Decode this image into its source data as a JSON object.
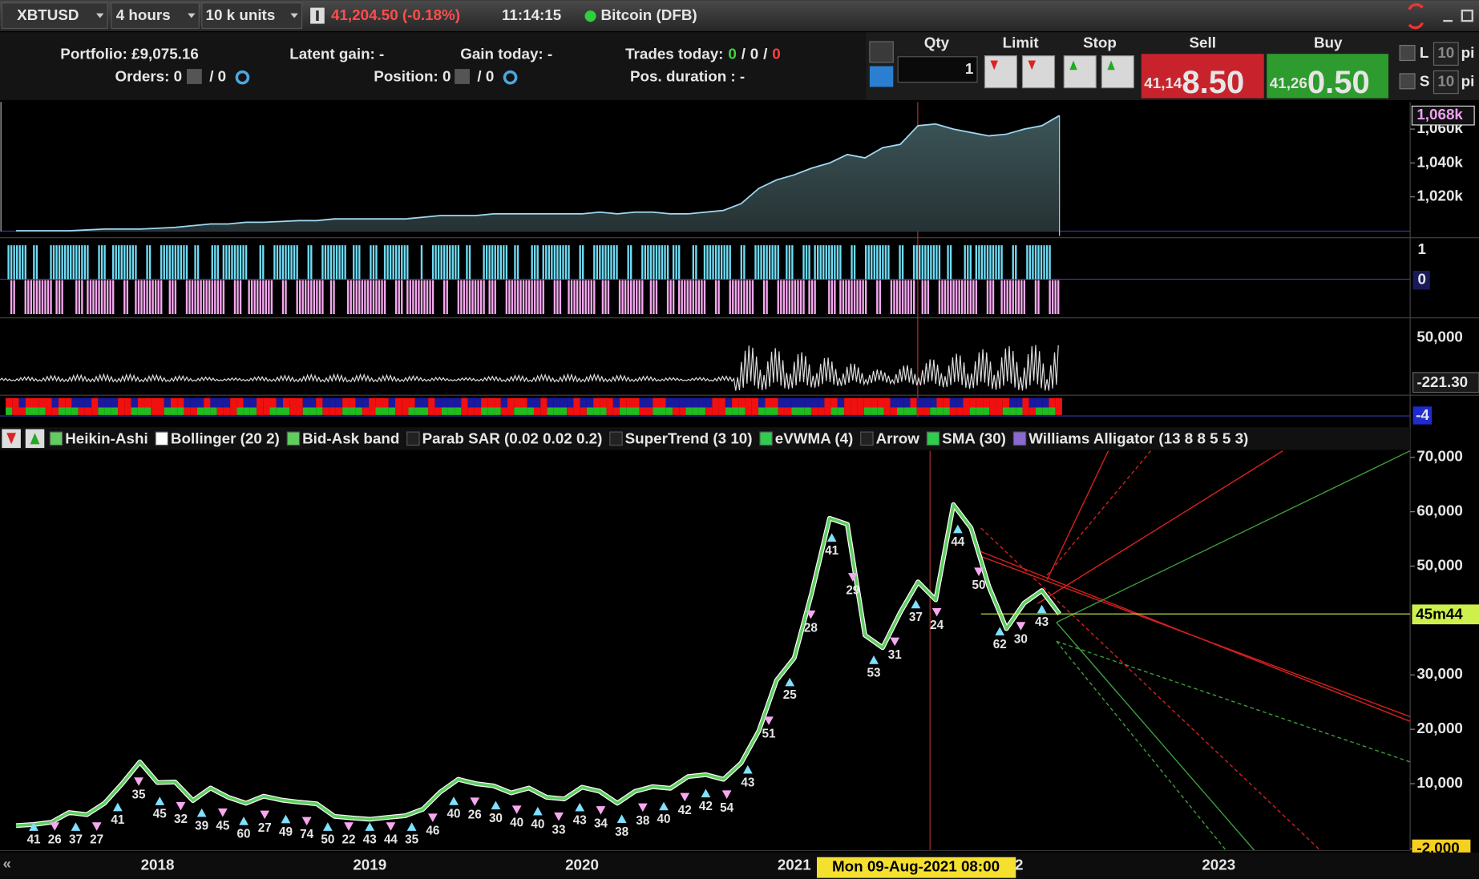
{
  "toolbar": {
    "symbol": "XBTUSD",
    "timeframe": "4 hours",
    "size": "10 k units",
    "price_change": "41,204.50 (-0.18%)",
    "time": "11:14:15",
    "instrument": "Bitcoin (DFB)"
  },
  "account": {
    "portfolio": "Portfolio: £9,075.16",
    "orders": "Orders: 0",
    "orders_total": "/ 0",
    "latent_gain": "Latent gain: -",
    "position": "Position: 0",
    "position_total": "/ 0",
    "gain_today": "Gain today: -",
    "trades_today_label": "Trades today:",
    "trades_today": [
      "0",
      "0",
      "0"
    ],
    "pos_duration": "Pos. duration : -"
  },
  "order_panel": {
    "qty_label": "Qty",
    "qty": "1",
    "limit_label": "Limit",
    "stop_label": "Stop",
    "sell_label": "Sell",
    "sell_price_prefix": "41,14",
    "sell_price_big": "8.50",
    "buy_label": "Buy",
    "buy_price_prefix": "41,26",
    "buy_price_big": "0.50",
    "long_label": "L",
    "long_value": "10",
    "short_label": "S",
    "short_value": "10",
    "unit": "pi"
  },
  "panels": {
    "signal_ticks": [
      "1",
      "0"
    ],
    "oscillator_ticks": [
      "50,000",
      "-221.30"
    ],
    "strip_label": "-4"
  },
  "indicators": [
    "Heikin-Ashi",
    "Bollinger (20 2)",
    "Bid-Ask band",
    "Parab SAR (0.02 0.02 0.2)",
    "SuperTrend (3 10)",
    "eVWMA (4)",
    "Arrow",
    "SMA (30)",
    "Williams Alligator (13 8 8 5 5 3)"
  ],
  "cursor_time": "Mon 09-Aug-2021 08:00",
  "countdown": "45m44",
  "chart_data": [
    {
      "type": "area",
      "values": [
        1000,
        1000,
        1000,
        1000,
        1000.5,
        1001,
        1001,
        1001,
        1001.5,
        1002,
        1003,
        1004,
        1004,
        1005,
        1005,
        1005.5,
        1006,
        1006,
        1007,
        1007,
        1007,
        1007,
        1007,
        1008,
        1009,
        1009,
        1009,
        1010,
        1010,
        1010,
        1010,
        1010,
        1010,
        1011,
        1010,
        1011,
        1011,
        1010,
        1010,
        1011,
        1012,
        1016,
        1025,
        1030,
        1033,
        1037,
        1040,
        1045,
        1043,
        1049,
        1051,
        1062,
        1063,
        1060,
        1058,
        1056,
        1057,
        1060,
        1062,
        1068
      ],
      "ylim": [
        997,
        1076
      ],
      "yticks": [
        {
          "value": 1060,
          "label": "1,060k"
        },
        {
          "value": 1040,
          "label": "1,040k"
        },
        {
          "value": 1020,
          "label": "1,020k"
        }
      ],
      "last_label": "1,068k",
      "color": "#9fd8f0"
    },
    {
      "type": "line",
      "categories": [
        null,
        null,
        null,
        null,
        null,
        null,
        null,
        null,
        "2018",
        null,
        null,
        null,
        null,
        null,
        null,
        null,
        null,
        null,
        null,
        null,
        "2019",
        null,
        null,
        null,
        null,
        null,
        null,
        null,
        null,
        null,
        null,
        null,
        "2020",
        null,
        null,
        null,
        null,
        null,
        null,
        null,
        null,
        null,
        null,
        null,
        "2021",
        null,
        null,
        null,
        null,
        null,
        null,
        null,
        null,
        null,
        null,
        null,
        "2022",
        null,
        null,
        null,
        null,
        null,
        null,
        null,
        null,
        null,
        null,
        null,
        "2023",
        null,
        null,
        null,
        null,
        null,
        null
      ],
      "values": [
        2300,
        2500,
        2900,
        4700,
        4300,
        6400,
        10000,
        14000,
        10200,
        10300,
        6900,
        9200,
        7500,
        6400,
        7700,
        7000,
        6600,
        6300,
        4000,
        3700,
        3450,
        3800,
        4100,
        5300,
        8500,
        10800,
        10000,
        9600,
        8300,
        9200,
        7500,
        7200,
        9350,
        8600,
        6400,
        8600,
        9450,
        9150,
        11300,
        11650,
        10800,
        13800,
        19700,
        29000,
        33100,
        45200,
        58800,
        57700,
        37300,
        35000,
        41500,
        47100,
        43800,
        61300,
        57000,
        46300,
        38500,
        43200,
        45500,
        41200,
        null,
        null,
        null,
        null,
        null,
        null,
        null,
        null,
        null,
        null,
        null,
        null,
        null,
        null,
        null
      ],
      "ylim": [
        -2300,
        71200
      ],
      "yticks": [
        {
          "value": 70000,
          "label": "70,000"
        },
        {
          "value": 60000,
          "label": "60,000"
        },
        {
          "value": 50000,
          "label": "50,000"
        },
        {
          "value": 30000,
          "label": "30,000"
        },
        {
          "value": 20000,
          "label": "20,000"
        },
        {
          "value": 10000,
          "label": "10,000"
        },
        {
          "value": -2000,
          "label": "-2,000"
        }
      ],
      "last_price": 41204.5,
      "color": "#5fce5f",
      "annotations": [
        "41",
        "26",
        "37",
        "27",
        "41",
        "35",
        "45",
        "32",
        "39",
        "45",
        "60",
        "27",
        "49",
        "74",
        "50",
        "22",
        "43",
        "44",
        "35",
        "46",
        "40",
        "26",
        "30",
        "40",
        "40",
        "33",
        "43",
        "34",
        "38",
        "38",
        "40",
        "42",
        "42",
        "54",
        "43",
        "51",
        "25",
        "28",
        "41",
        "29",
        "53",
        "31",
        "37",
        "24",
        "44",
        "50",
        "62",
        "30",
        "43"
      ]
    }
  ]
}
